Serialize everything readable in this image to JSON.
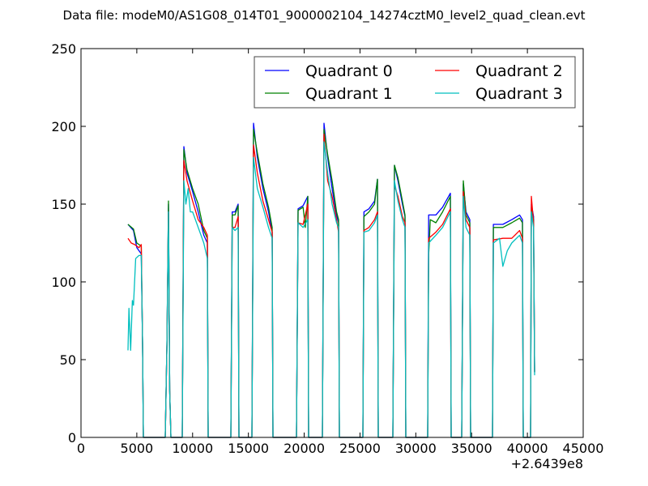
{
  "chart_data": {
    "type": "line",
    "title": "Data file: modeM0/AS1G08_014T01_9000002104_14274cztM0_level2_quad_clean.evt",
    "xlabel": "",
    "ylabel": "",
    "xlim": [
      0,
      45000
    ],
    "ylim": [
      0,
      250
    ],
    "x_offset_label": "+2.6439e8",
    "xticks": [
      0,
      5000,
      10000,
      15000,
      20000,
      25000,
      30000,
      35000,
      40000,
      45000
    ],
    "yticks": [
      0,
      50,
      100,
      150,
      200,
      250
    ],
    "legend": {
      "placement": "top-right",
      "columns": 2
    },
    "series": [
      {
        "name": "Quadrant 0",
        "color": "#0000ff",
        "points": [
          [
            4210,
            137
          ],
          [
            4700,
            133
          ],
          [
            5000,
            122
          ],
          [
            5400,
            118
          ],
          [
            5516,
            60
          ],
          [
            5589,
            0
          ],
          [
            7548,
            0
          ],
          [
            7700,
            60
          ],
          [
            7839,
            150
          ],
          [
            7950,
            30
          ],
          [
            8056,
            0
          ],
          [
            9073,
            0
          ],
          [
            9218,
            187
          ],
          [
            9500,
            170
          ],
          [
            10000,
            158
          ],
          [
            10500,
            145
          ],
          [
            11000,
            130
          ],
          [
            11322,
            125
          ],
          [
            11395,
            0
          ],
          [
            13427,
            0
          ],
          [
            13550,
            145
          ],
          [
            13800,
            145
          ],
          [
            14080,
            150
          ],
          [
            14153,
            0
          ],
          [
            15314,
            0
          ],
          [
            15460,
            202
          ],
          [
            15800,
            180
          ],
          [
            16300,
            160
          ],
          [
            16800,
            145
          ],
          [
            17129,
            132
          ],
          [
            17202,
            0
          ],
          [
            19306,
            0
          ],
          [
            19450,
            147
          ],
          [
            19900,
            149
          ],
          [
            20322,
            155
          ],
          [
            20395,
            0
          ],
          [
            21629,
            0
          ],
          [
            21774,
            202
          ],
          [
            22100,
            180
          ],
          [
            22500,
            160
          ],
          [
            22900,
            143
          ],
          [
            23080,
            138
          ],
          [
            23153,
            0
          ],
          [
            25258,
            0
          ],
          [
            25350,
            145
          ],
          [
            25800,
            147
          ],
          [
            26300,
            152
          ],
          [
            26564,
            166
          ],
          [
            26637,
            0
          ],
          [
            27943,
            0
          ],
          [
            28088,
            175
          ],
          [
            28400,
            165
          ],
          [
            28800,
            150
          ],
          [
            29032,
            142
          ],
          [
            29105,
            0
          ],
          [
            31064,
            0
          ],
          [
            31150,
            143
          ],
          [
            31800,
            143
          ],
          [
            32400,
            148
          ],
          [
            33096,
            157
          ],
          [
            33169,
            0
          ],
          [
            34113,
            0
          ],
          [
            34258,
            163
          ],
          [
            34500,
            145
          ],
          [
            34838,
            140
          ],
          [
            34911,
            0
          ],
          [
            36871,
            0
          ],
          [
            36950,
            137
          ],
          [
            37800,
            137
          ],
          [
            38600,
            140
          ],
          [
            39300,
            143
          ],
          [
            39556,
            140
          ],
          [
            39629,
            0
          ],
          [
            40282,
            0
          ],
          [
            40355,
            150
          ],
          [
            40550,
            142
          ],
          [
            40645,
            42
          ]
        ]
      },
      {
        "name": "Quadrant 1",
        "color": "#008000",
        "points": [
          [
            4210,
            137
          ],
          [
            4700,
            134
          ],
          [
            5000,
            125
          ],
          [
            5400,
            123
          ],
          [
            5516,
            60
          ],
          [
            5589,
            0
          ],
          [
            7548,
            0
          ],
          [
            7700,
            60
          ],
          [
            7839,
            152
          ],
          [
            7950,
            30
          ],
          [
            8056,
            0
          ],
          [
            9073,
            0
          ],
          [
            9218,
            185
          ],
          [
            9500,
            172
          ],
          [
            10000,
            160
          ],
          [
            10500,
            150
          ],
          [
            11000,
            133
          ],
          [
            11322,
            128
          ],
          [
            11395,
            0
          ],
          [
            13427,
            0
          ],
          [
            13550,
            143
          ],
          [
            13800,
            143
          ],
          [
            14080,
            149
          ],
          [
            14153,
            0
          ],
          [
            15314,
            0
          ],
          [
            15460,
            198
          ],
          [
            15800,
            183
          ],
          [
            16300,
            163
          ],
          [
            16800,
            148
          ],
          [
            17129,
            135
          ],
          [
            17202,
            0
          ],
          [
            19306,
            0
          ],
          [
            19450,
            146
          ],
          [
            19900,
            148
          ],
          [
            20100,
            135
          ],
          [
            20322,
            155
          ],
          [
            20395,
            0
          ],
          [
            21629,
            0
          ],
          [
            21774,
            198
          ],
          [
            22100,
            182
          ],
          [
            22500,
            165
          ],
          [
            22900,
            145
          ],
          [
            23080,
            140
          ],
          [
            23153,
            0
          ],
          [
            25258,
            0
          ],
          [
            25350,
            142
          ],
          [
            25800,
            145
          ],
          [
            26300,
            150
          ],
          [
            26564,
            166
          ],
          [
            26637,
            0
          ],
          [
            27943,
            0
          ],
          [
            28088,
            175
          ],
          [
            28400,
            167
          ],
          [
            28800,
            152
          ],
          [
            29032,
            143
          ],
          [
            29105,
            0
          ],
          [
            31064,
            0
          ],
          [
            31150,
            117
          ],
          [
            31300,
            140
          ],
          [
            31800,
            138
          ],
          [
            32400,
            145
          ],
          [
            33096,
            155
          ],
          [
            33169,
            0
          ],
          [
            34113,
            0
          ],
          [
            34258,
            165
          ],
          [
            34500,
            143
          ],
          [
            34838,
            138
          ],
          [
            34911,
            0
          ],
          [
            36871,
            0
          ],
          [
            36950,
            135
          ],
          [
            37800,
            135
          ],
          [
            38600,
            138
          ],
          [
            39300,
            141
          ],
          [
            39556,
            138
          ],
          [
            39629,
            0
          ],
          [
            40282,
            0
          ],
          [
            40355,
            148
          ],
          [
            40550,
            140
          ],
          [
            40645,
            42
          ]
        ]
      },
      {
        "name": "Quadrant 2",
        "color": "#ff0000",
        "points": [
          [
            4210,
            128
          ],
          [
            4500,
            125
          ],
          [
            4800,
            124
          ],
          [
            5200,
            122
          ],
          [
            5400,
            124
          ],
          [
            5516,
            60
          ],
          [
            5589,
            0
          ],
          [
            7548,
            0
          ],
          [
            7700,
            60
          ],
          [
            7839,
            145
          ],
          [
            7950,
            30
          ],
          [
            8056,
            0
          ],
          [
            9073,
            0
          ],
          [
            9218,
            178
          ],
          [
            9500,
            165
          ],
          [
            10000,
            152
          ],
          [
            10500,
            140
          ],
          [
            11000,
            135
          ],
          [
            11322,
            130
          ],
          [
            11395,
            0
          ],
          [
            13427,
            0
          ],
          [
            13550,
            135
          ],
          [
            13800,
            135
          ],
          [
            14080,
            142
          ],
          [
            14153,
            0
          ],
          [
            15314,
            0
          ],
          [
            15460,
            188
          ],
          [
            15800,
            170
          ],
          [
            16300,
            152
          ],
          [
            16800,
            140
          ],
          [
            17129,
            132
          ],
          [
            17202,
            0
          ],
          [
            19306,
            0
          ],
          [
            19450,
            138
          ],
          [
            19900,
            137
          ],
          [
            20322,
            150
          ],
          [
            20395,
            0
          ],
          [
            21629,
            0
          ],
          [
            21774,
            195
          ],
          [
            22100,
            165
          ],
          [
            22500,
            155
          ],
          [
            22900,
            140
          ],
          [
            23080,
            132
          ],
          [
            23153,
            0
          ],
          [
            25258,
            0
          ],
          [
            25350,
            133
          ],
          [
            25800,
            135
          ],
          [
            26300,
            140
          ],
          [
            26564,
            145
          ],
          [
            26637,
            0
          ],
          [
            27943,
            0
          ],
          [
            28088,
            162
          ],
          [
            28400,
            155
          ],
          [
            28800,
            142
          ],
          [
            29032,
            138
          ],
          [
            29105,
            0
          ],
          [
            31064,
            0
          ],
          [
            31150,
            128
          ],
          [
            31800,
            132
          ],
          [
            32400,
            137
          ],
          [
            33096,
            147
          ],
          [
            33169,
            0
          ],
          [
            34113,
            0
          ],
          [
            34258,
            158
          ],
          [
            34500,
            140
          ],
          [
            34838,
            135
          ],
          [
            34911,
            0
          ],
          [
            36871,
            0
          ],
          [
            36950,
            127
          ],
          [
            37800,
            128
          ],
          [
            38600,
            128
          ],
          [
            39300,
            133
          ],
          [
            39556,
            128
          ],
          [
            39629,
            0
          ],
          [
            40282,
            0
          ],
          [
            40355,
            155
          ],
          [
            40550,
            138
          ],
          [
            40645,
            42
          ]
        ]
      },
      {
        "name": "Quadrant 3",
        "color": "#00bfbf",
        "points": [
          [
            4210,
            56
          ],
          [
            4300,
            83
          ],
          [
            4450,
            56
          ],
          [
            4600,
            88
          ],
          [
            4700,
            85
          ],
          [
            4900,
            115
          ],
          [
            5200,
            117
          ],
          [
            5400,
            117
          ],
          [
            5516,
            60
          ],
          [
            5589,
            0
          ],
          [
            7548,
            0
          ],
          [
            7700,
            60
          ],
          [
            7839,
            145
          ],
          [
            7950,
            30
          ],
          [
            8056,
            0
          ],
          [
            9073,
            0
          ],
          [
            9218,
            165
          ],
          [
            9400,
            150
          ],
          [
            9600,
            160
          ],
          [
            9800,
            145
          ],
          [
            10000,
            145
          ],
          [
            10500,
            135
          ],
          [
            11000,
            125
          ],
          [
            11322,
            115
          ],
          [
            11395,
            0
          ],
          [
            13427,
            0
          ],
          [
            13550,
            135
          ],
          [
            13800,
            133
          ],
          [
            14080,
            135
          ],
          [
            14153,
            0
          ],
          [
            15314,
            0
          ],
          [
            15460,
            180
          ],
          [
            15800,
            160
          ],
          [
            16300,
            148
          ],
          [
            16800,
            135
          ],
          [
            17129,
            128
          ],
          [
            17202,
            0
          ],
          [
            19306,
            0
          ],
          [
            19450,
            138
          ],
          [
            19900,
            135
          ],
          [
            20322,
            140
          ],
          [
            20395,
            0
          ],
          [
            21629,
            0
          ],
          [
            21774,
            190
          ],
          [
            22100,
            170
          ],
          [
            22500,
            150
          ],
          [
            22900,
            138
          ],
          [
            23080,
            135
          ],
          [
            23153,
            0
          ],
          [
            25258,
            0
          ],
          [
            25350,
            132
          ],
          [
            25800,
            133
          ],
          [
            26300,
            138
          ],
          [
            26564,
            143
          ],
          [
            26637,
            0
          ],
          [
            27943,
            0
          ],
          [
            28088,
            165
          ],
          [
            28400,
            152
          ],
          [
            28800,
            140
          ],
          [
            29032,
            135
          ],
          [
            29105,
            0
          ],
          [
            31064,
            0
          ],
          [
            31150,
            125
          ],
          [
            31800,
            130
          ],
          [
            32400,
            135
          ],
          [
            33096,
            145
          ],
          [
            33169,
            0
          ],
          [
            34113,
            0
          ],
          [
            34258,
            155
          ],
          [
            34500,
            135
          ],
          [
            34838,
            130
          ],
          [
            34911,
            0
          ],
          [
            36871,
            0
          ],
          [
            36950,
            125
          ],
          [
            37500,
            128
          ],
          [
            37800,
            110
          ],
          [
            38200,
            120
          ],
          [
            38600,
            125
          ],
          [
            39300,
            130
          ],
          [
            39556,
            125
          ],
          [
            39629,
            0
          ],
          [
            40282,
            0
          ],
          [
            40355,
            145
          ],
          [
            40550,
            135
          ],
          [
            40645,
            40
          ]
        ]
      }
    ]
  }
}
